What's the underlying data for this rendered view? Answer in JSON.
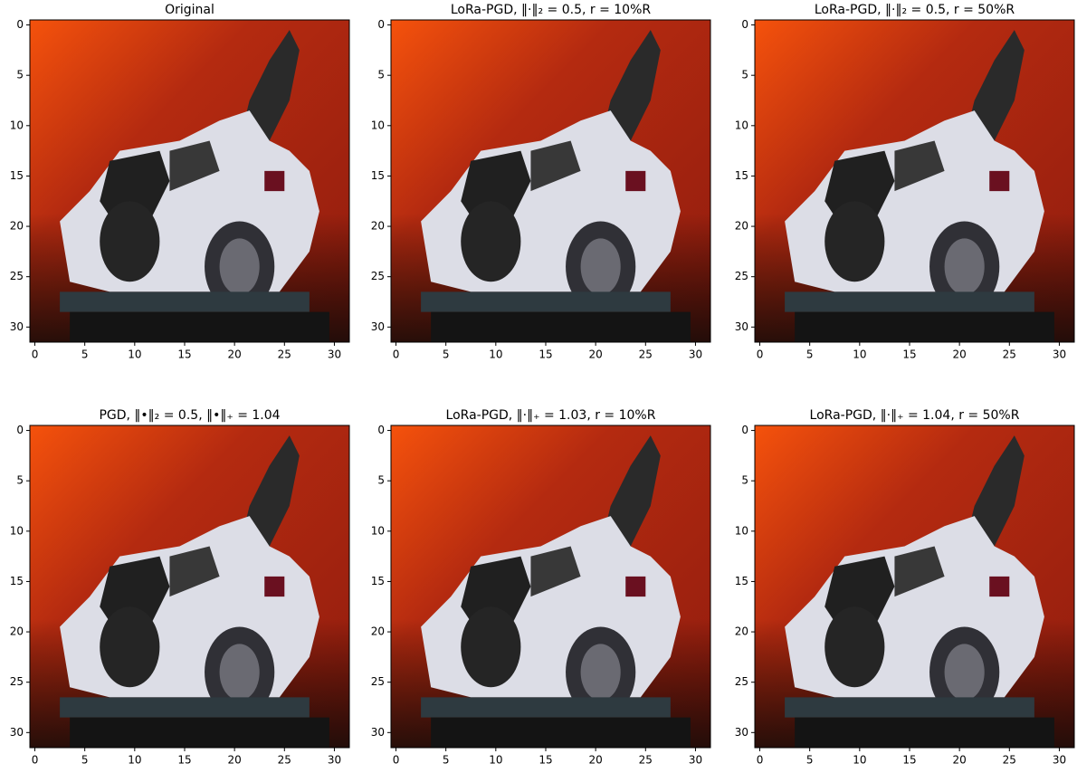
{
  "chart_data": [
    {
      "type": "image",
      "title": "Original",
      "xlim": [
        -0.5,
        31.5
      ],
      "ylim": [
        31.5,
        -0.5
      ],
      "xticks": [
        0,
        5,
        10,
        15,
        20,
        25,
        30
      ],
      "yticks": [
        0,
        5,
        10,
        15,
        20,
        25,
        30
      ]
    },
    {
      "type": "image",
      "title": "LoRa-PGD, ‖·‖₂ = 0.5, r = 10%R",
      "xlim": [
        -0.5,
        31.5
      ],
      "ylim": [
        31.5,
        -0.5
      ],
      "xticks": [
        0,
        5,
        10,
        15,
        20,
        25,
        30
      ],
      "yticks": [
        0,
        5,
        10,
        15,
        20,
        25,
        30
      ]
    },
    {
      "type": "image",
      "title": "LoRa-PGD, ‖·‖₂ = 0.5, r = 50%R",
      "xlim": [
        -0.5,
        31.5
      ],
      "ylim": [
        31.5,
        -0.5
      ],
      "xticks": [
        0,
        5,
        10,
        15,
        20,
        25,
        30
      ],
      "yticks": [
        0,
        5,
        10,
        15,
        20,
        25,
        30
      ]
    },
    {
      "type": "image",
      "title": "PGD, ‖•‖₂ = 0.5, ‖•‖₊ = 1.04",
      "xlim": [
        -0.5,
        31.5
      ],
      "ylim": [
        31.5,
        -0.5
      ],
      "xticks": [
        0,
        5,
        10,
        15,
        20,
        25,
        30
      ],
      "yticks": [
        0,
        5,
        10,
        15,
        20,
        25,
        30
      ]
    },
    {
      "type": "image",
      "title": "LoRa-PGD, ‖·‖₊ = 1.03, r = 10%R",
      "xlim": [
        -0.5,
        31.5
      ],
      "ylim": [
        31.5,
        -0.5
      ],
      "xticks": [
        0,
        5,
        10,
        15,
        20,
        25,
        30
      ],
      "yticks": [
        0,
        5,
        10,
        15,
        20,
        25,
        30
      ]
    },
    {
      "type": "image",
      "title": "LoRa-PGD, ‖·‖₊ = 1.04, r = 50%R",
      "xlim": [
        -0.5,
        31.5
      ],
      "ylim": [
        31.5,
        -0.5
      ],
      "xticks": [
        0,
        5,
        10,
        15,
        20,
        25,
        30
      ],
      "yticks": [
        0,
        5,
        10,
        15,
        20,
        25,
        30
      ]
    }
  ]
}
